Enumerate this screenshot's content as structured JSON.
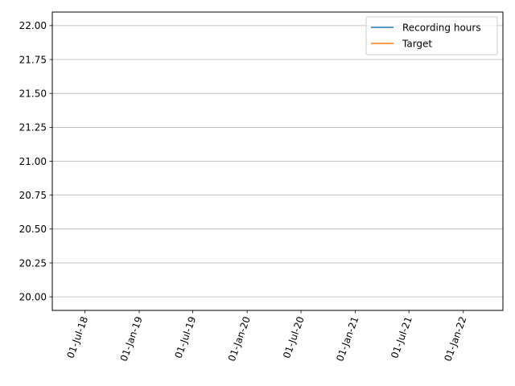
{
  "chart_data": {
    "type": "line",
    "series": [
      {
        "name": "Recording hours",
        "color": "#1f77b4",
        "points": []
      },
      {
        "name": "Target",
        "color": "#ff7f0e",
        "points": []
      }
    ],
    "ylim": [
      19.9,
      22.1
    ],
    "yticks": [
      20.0,
      20.25,
      20.5,
      20.75,
      21.0,
      21.25,
      21.5,
      21.75,
      22.0
    ],
    "ytick_labels": [
      "20.00",
      "20.25",
      "20.50",
      "20.75",
      "21.00",
      "21.25",
      "21.50",
      "21.75",
      "22.00"
    ],
    "xlim": [
      "2018-03-13",
      "2022-05-15"
    ],
    "xticks": [
      "2018-07-01",
      "2019-01-01",
      "2019-07-01",
      "2020-01-01",
      "2020-07-01",
      "2021-01-01",
      "2021-07-01",
      "2022-01-01"
    ],
    "xtick_labels": [
      "01-Jul-18",
      "01-Jan-19",
      "01-Jul-19",
      "01-Jan-20",
      "01-Jul-20",
      "01-Jan-21",
      "01-Jul-21",
      "01-Jan-22"
    ],
    "grid": "y",
    "legend": "top-right"
  }
}
